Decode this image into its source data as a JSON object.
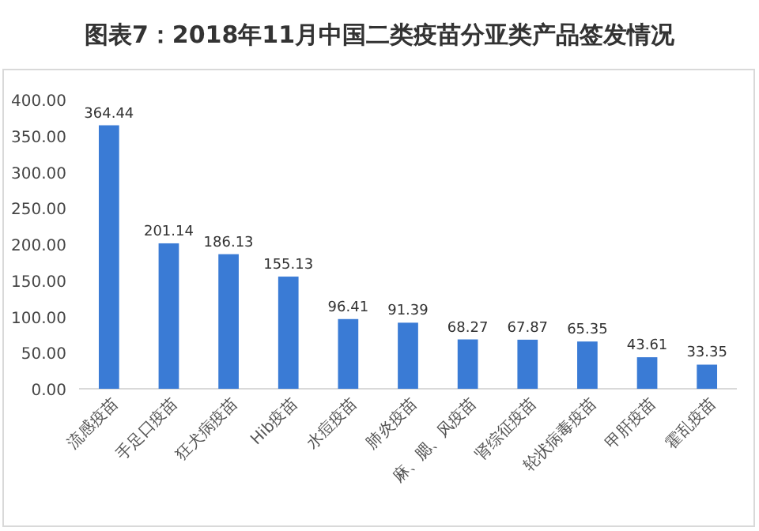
{
  "chart_data": {
    "type": "bar",
    "title": "图表7：2018年11月中国二类疫苗分亚类产品签发情况",
    "categories": [
      "流感疫苗",
      "手足口疫苗",
      "狂犬病疫苗",
      "Hib疫苗",
      "水痘疫苗",
      "肺炎疫苗",
      "麻、腮、风疫苗",
      "肾综征疫苗",
      "轮状病毒疫苗",
      "甲肝疫苗",
      "霍乱疫苗"
    ],
    "values": [
      364.44,
      201.14,
      186.13,
      155.13,
      96.41,
      91.39,
      68.27,
      67.87,
      65.35,
      43.61,
      33.35
    ],
    "color": "#3a7bd5",
    "ylim": [
      0,
      400
    ],
    "yticks": [
      {
        "value": 0,
        "label": "0.00"
      },
      {
        "value": 50,
        "label": "50.00"
      },
      {
        "value": 100,
        "label": "100.00"
      },
      {
        "value": 150,
        "label": "150.00"
      },
      {
        "value": 200,
        "label": "200.00"
      },
      {
        "value": 250,
        "label": "250.00"
      },
      {
        "value": 300,
        "label": "300.00"
      },
      {
        "value": 350,
        "label": "350.00"
      },
      {
        "value": 400,
        "label": "400.00"
      }
    ],
    "data_labels": true,
    "grid": false
  }
}
